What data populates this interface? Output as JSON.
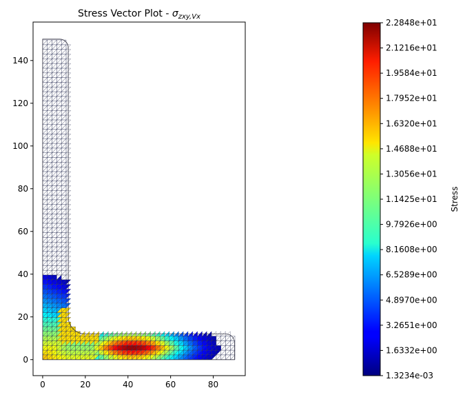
{
  "chart_data": {
    "type": "vector-field",
    "title": "Stress Vector Plot - ",
    "title_symbol": "σ",
    "title_subscript": "zxy,Vx",
    "xlabel": "",
    "ylabel": "",
    "xlim": [
      -4.5,
      95
    ],
    "ylim": [
      -7.5,
      158
    ],
    "xticks": [
      0,
      20,
      40,
      60,
      80
    ],
    "yticks": [
      0,
      20,
      40,
      60,
      80,
      100,
      120,
      140
    ],
    "geometry": {
      "shape": "L-section",
      "vertical_leg": {
        "x": [
          0,
          12
        ],
        "y": [
          0,
          150
        ]
      },
      "horizontal_leg": {
        "x": [
          0,
          90
        ],
        "y": [
          0,
          12
        ]
      },
      "root_radius": 8,
      "toe_radius": 4
    },
    "colorbar": {
      "label": "Stress",
      "colormap": "jet",
      "min": 0.0013234,
      "max": 22.848,
      "tick_labels": [
        "2.2848e+01",
        "2.1216e+01",
        "1.9584e+01",
        "1.7952e+01",
        "1.6320e+01",
        "1.4688e+01",
        "1.3056e+01",
        "1.1425e+01",
        "9.7926e+00",
        "8.1608e+00",
        "6.5289e+00",
        "4.8970e+00",
        "3.2651e+00",
        "1.6332e+00",
        "1.3234e-03"
      ],
      "tick_values": [
        22.848,
        21.216,
        19.584,
        17.952,
        16.32,
        14.688,
        13.056,
        11.425,
        9.7926,
        8.1608,
        6.5289,
        4.897,
        3.2651,
        1.6332,
        0.0013234
      ]
    },
    "field_regions": [
      {
        "location": "vertical leg upper",
        "x": [
          0,
          12
        ],
        "y": [
          40,
          150
        ],
        "stress": 0.5
      },
      {
        "location": "vertical leg near root",
        "x": [
          0,
          12
        ],
        "y": [
          20,
          40
        ],
        "stress": 6.5
      },
      {
        "location": "root region",
        "x": [
          0,
          20
        ],
        "y": [
          0,
          20
        ],
        "stress": 10.5
      },
      {
        "location": "horizontal leg",
        "x": [
          20,
          65
        ],
        "y": [
          0,
          12
        ],
        "stress": 20.5
      },
      {
        "location": "horizontal leg",
        "x": [
          65,
          80
        ],
        "y": [
          0,
          12
        ],
        "stress": 11.5
      },
      {
        "location": "horizontal leg tip",
        "x": [
          80,
          90
        ],
        "y": [
          0,
          12
        ],
        "stress": 2.0
      }
    ]
  }
}
